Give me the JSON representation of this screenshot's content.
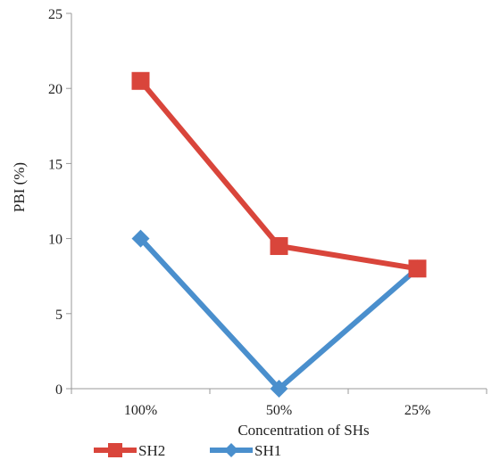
{
  "chart_data": {
    "type": "line",
    "title": "",
    "xlabel": "Concentration of SHs",
    "ylabel": "PBI (%)",
    "ylim": [
      0,
      25
    ],
    "yticks": [
      "0",
      "5",
      "10",
      "15",
      "20",
      "25"
    ],
    "categories": [
      "100%",
      "50%",
      "25%"
    ],
    "grid": false,
    "legend_position": "bottom-left",
    "series": [
      {
        "name": "SH2",
        "values": [
          20.5,
          9.5,
          8.0
        ],
        "color": "#d9453b",
        "marker": "square"
      },
      {
        "name": "SH1",
        "values": [
          10.0,
          0.0,
          8.0
        ],
        "color": "#4a8fcd",
        "marker": "diamond"
      }
    ]
  }
}
